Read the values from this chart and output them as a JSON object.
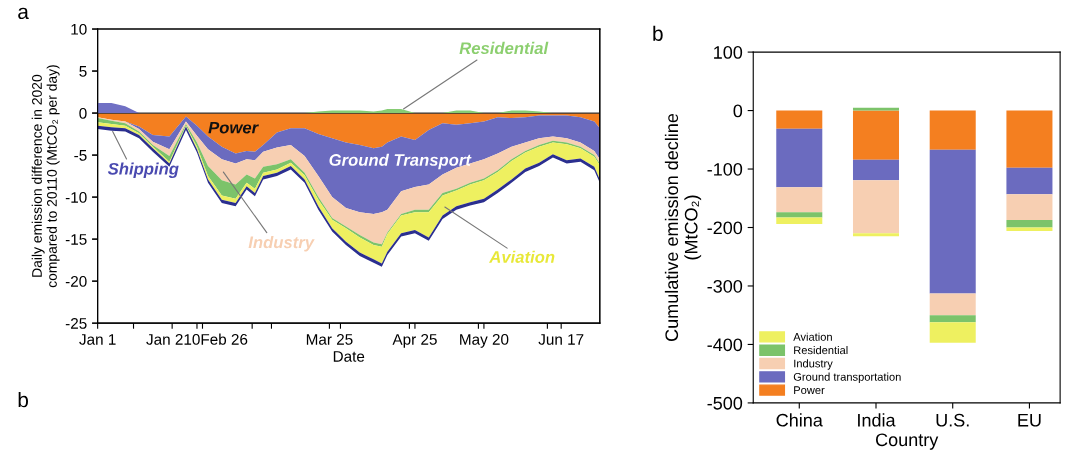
{
  "chart_data": [
    {
      "type": "area",
      "stacked": true,
      "title": "a",
      "xlabel": "Date",
      "ylabel": "Daily emission difference in 2020\ncompared to 20110 (MtCO₂ per day)",
      "x": [
        "2020-01-01",
        "2020-01-06",
        "2020-01-11",
        "2020-01-16",
        "2020-01-21",
        "2020-01-27",
        "2020-02-02",
        "2020-02-06",
        "2020-02-10",
        "2020-02-15",
        "2020-02-20",
        "2020-02-24",
        "2020-02-27",
        "2020-03-01",
        "2020-03-06",
        "2020-03-11",
        "2020-03-16",
        "2020-03-21",
        "2020-03-26",
        "2020-03-31",
        "2020-04-05",
        "2020-04-10",
        "2020-04-13",
        "2020-04-15",
        "2020-04-20",
        "2020-04-25",
        "2020-04-30",
        "2020-05-05",
        "2020-05-10",
        "2020-05-15",
        "2020-05-20",
        "2020-05-25",
        "2020-05-30",
        "2020-06-04",
        "2020-06-09",
        "2020-06-14",
        "2020-06-19",
        "2020-06-24",
        "2020-06-29",
        "2020-07-01"
      ],
      "xlim": [
        "2020-01-01",
        "2020-07-01"
      ],
      "xticks": [
        {
          "value": "2020-01-01",
          "label": "Jan 1"
        },
        {
          "value": "2020-01-28",
          "label": null
        },
        {
          "value": "2020-02-06",
          "label": "Jan 210Feb 26"
        },
        {
          "value": "2020-02-26",
          "label": null
        },
        {
          "value": "2020-03-25",
          "label": "Mar 25"
        },
        {
          "value": "2020-04-25",
          "label": "Apr 25"
        },
        {
          "value": "2020-05-20",
          "label": "May 20"
        },
        {
          "value": "2020-06-17",
          "label": "Jun 17"
        }
      ],
      "ylim": [
        -25,
        10
      ],
      "yticks": [
        -25,
        -20,
        -15,
        -10,
        -5,
        0,
        5,
        10
      ],
      "series": [
        {
          "name": "Power",
          "color": "#f47f20",
          "values": [
            -0.5,
            -0.8,
            -1.0,
            -1.6,
            -2.6,
            -2.8,
            -0.4,
            -1.5,
            -2.8,
            -4.0,
            -4.8,
            -4.5,
            -4.6,
            -3.8,
            -2.3,
            -1.8,
            -1.8,
            -2.5,
            -3.0,
            -3.5,
            -3.8,
            -4.2,
            -4.0,
            -3.5,
            -2.8,
            -3.2,
            -2.0,
            -1.2,
            -1.4,
            -1.2,
            -1.0,
            -0.5,
            -0.6,
            -0.5,
            -0.3,
            -0.3,
            -0.3,
            -0.5,
            -1.0,
            -1.8
          ]
        },
        {
          "name": "Ground Transport",
          "color": "#6b6bbf",
          "values": [
            0,
            0,
            0,
            -0.3,
            -0.8,
            -1.5,
            -0.6,
            -1.2,
            -1.5,
            -1.5,
            -1.2,
            -1.0,
            -1.0,
            -0.8,
            -1.8,
            -2.0,
            -3.3,
            -5.0,
            -7.0,
            -7.8,
            -8.0,
            -7.8,
            -7.8,
            -8.0,
            -6.5,
            -5.6,
            -6.5,
            -6.1,
            -5.1,
            -4.8,
            -4.5,
            -4.3,
            -3.4,
            -3.0,
            -2.7,
            -2.5,
            -2.7,
            -3.0,
            -3.5,
            -3.7
          ]
        },
        {
          "name": "Industry",
          "color": "#f7cfb2",
          "values": [
            -0.1,
            -0.1,
            -0.2,
            -0.3,
            -0.4,
            -0.8,
            -0.3,
            -0.8,
            -2.0,
            -2.5,
            -2.5,
            -1.8,
            -2.2,
            -1.8,
            -2.0,
            -1.7,
            -2.0,
            -2.5,
            -2.5,
            -2.2,
            -2.7,
            -3.4,
            -3.8,
            -2.7,
            -2.7,
            -2.7,
            -3.0,
            -2.2,
            -2.5,
            -2.3,
            -2.3,
            -2.0,
            -1.5,
            -1.0,
            -0.8,
            -0.5,
            -0.5,
            -0.5,
            -0.5,
            -0.5
          ]
        },
        {
          "name": "Residential",
          "color": "#7cc36a",
          "values": [
            -0.5,
            -0.4,
            -0.3,
            -0.2,
            -0.2,
            -0.7,
            -0.2,
            -0.5,
            -1.2,
            -1.8,
            -1.7,
            -1.0,
            -1.2,
            -0.7,
            -0.6,
            -0.4,
            -0.3,
            -0.3,
            -0.2,
            -0.2,
            -0.3,
            -0.3,
            -0.3,
            -0.2,
            -0.2,
            -0.3,
            -0.3,
            -0.3,
            -0.2,
            -0.2,
            -0.2,
            -0.2,
            -0.2,
            -0.2,
            -0.2,
            -0.2,
            -0.2,
            -0.2,
            -0.2,
            -0.2
          ]
        },
        {
          "name": "Aviation",
          "color": "#eef060",
          "values": [
            -0.4,
            -0.4,
            -0.3,
            -0.2,
            -0.2,
            -0.2,
            -0.1,
            -0.3,
            -0.4,
            -0.5,
            -0.5,
            -0.4,
            -0.5,
            -0.4,
            -0.4,
            -0.4,
            -0.5,
            -0.8,
            -1.0,
            -1.6,
            -1.8,
            -1.7,
            -2.0,
            -2.1,
            -2.1,
            -2.1,
            -3.0,
            -2.4,
            -1.9,
            -2.1,
            -2.2,
            -2.1,
            -2.2,
            -1.9,
            -1.9,
            -1.4,
            -1.9,
            -1.2,
            -1.2,
            -1.7
          ]
        },
        {
          "name": "Shipping",
          "color": "#2b2f8f",
          "values": [
            -0.4,
            -0.4,
            -0.4,
            -0.4,
            -0.4,
            -0.4,
            -0.4,
            -0.4,
            -0.4,
            -0.4,
            -0.4,
            -0.4,
            -0.4,
            -0.4,
            -0.4,
            -0.4,
            -0.4,
            -0.4,
            -0.4,
            -0.4,
            -0.4,
            -0.4,
            -0.4,
            -0.4,
            -0.4,
            -0.4,
            -0.4,
            -0.4,
            -0.4,
            -0.4,
            -0.4,
            -0.4,
            -0.4,
            -0.4,
            -0.4,
            -0.4,
            -0.4,
            -0.4,
            -0.4,
            -0.4
          ]
        }
      ],
      "ref_lines": [
        {
          "axis": "y",
          "value": 0,
          "color": "#333333"
        }
      ],
      "annotations": [
        "b"
      ]
    },
    {
      "type": "area",
      "tick_labels": false,
      "x": [
        "2020-01-01",
        "2020-01-06",
        "2020-01-11",
        "2020-01-16",
        "2020-01-21",
        "2020-01-27",
        "2020-02-02",
        "2020-02-06",
        "2020-02-10",
        "2020-02-15",
        "2020-02-20",
        "2020-02-24",
        "2020-02-27",
        "2020-03-01",
        "2020-03-06",
        "2020-03-11",
        "2020-03-16",
        "2020-03-21",
        "2020-03-26",
        "2020-03-31",
        "2020-04-05",
        "2020-04-10",
        "2020-04-13",
        "2020-04-15",
        "2020-04-20",
        "2020-04-25",
        "2020-04-30",
        "2020-05-05",
        "2020-05-10",
        "2020-05-15",
        "2020-05-20",
        "2020-05-25",
        "2020-05-30",
        "2020-06-04",
        "2020-06-09",
        "2020-06-14",
        "2020-06-19",
        "2020-06-24",
        "2020-06-29",
        "2020-07-01"
      ],
      "xlim": [
        "2020-01-01",
        "2020-07-01"
      ],
      "ylim": [
        -25,
        10
      ],
      "yticks": [
        -25,
        -20,
        -15,
        -10,
        -5,
        0,
        5,
        10
      ],
      "series": [
        {
          "color": "#7070c4",
          "values": [
            1.2,
            1.2,
            0.8,
            0,
            0,
            0,
            0,
            0,
            0,
            0,
            0,
            0,
            0,
            0,
            0,
            0,
            0,
            0,
            0,
            0,
            0,
            0,
            0,
            0,
            0,
            0,
            0,
            0,
            0,
            0,
            0,
            0,
            0,
            0,
            0,
            0,
            0,
            0,
            0,
            0
          ]
        },
        {
          "color": "#86cc74",
          "values": [
            0,
            0,
            0,
            0,
            0,
            0,
            0,
            0,
            0,
            0,
            0,
            0,
            0,
            0,
            0,
            0,
            0,
            0.2,
            0.3,
            0.3,
            0.3,
            0.2,
            0.3,
            0.5,
            0.5,
            0,
            0,
            0,
            0.3,
            0.3,
            0,
            0,
            0.3,
            0.3,
            0.2,
            0,
            0,
            0,
            0,
            0
          ]
        }
      ]
    },
    {
      "type": "bar",
      "stacked": true,
      "title": "b",
      "xlabel": "Country",
      "ylabel": "Cumulative emission decline\n(MtCO₂)",
      "categories": [
        "China",
        "India",
        "U.S.",
        "EU"
      ],
      "ylim": [
        -500,
        100
      ],
      "yticks": [
        -500,
        -400,
        -300,
        -200,
        -100,
        0,
        100
      ],
      "legend": "bottom left",
      "series": [
        {
          "name": "Power",
          "color": "#f47f20",
          "values": [
            -31,
            -84,
            -67,
            -98
          ]
        },
        {
          "name": "Ground transportation",
          "color": "#6b6bbf",
          "values": [
            -100,
            -35,
            -246,
            -45
          ]
        },
        {
          "name": "Industry",
          "color": "#f7cfb2",
          "values": [
            -43,
            -91,
            -37,
            -44
          ]
        },
        {
          "name": "Residential",
          "color": "#7cc36a",
          "values": [
            -9,
            5,
            -12,
            -13
          ]
        },
        {
          "name": "Aviation",
          "color": "#eef060",
          "values": [
            -11,
            -5,
            -35,
            -6
          ]
        }
      ]
    }
  ]
}
